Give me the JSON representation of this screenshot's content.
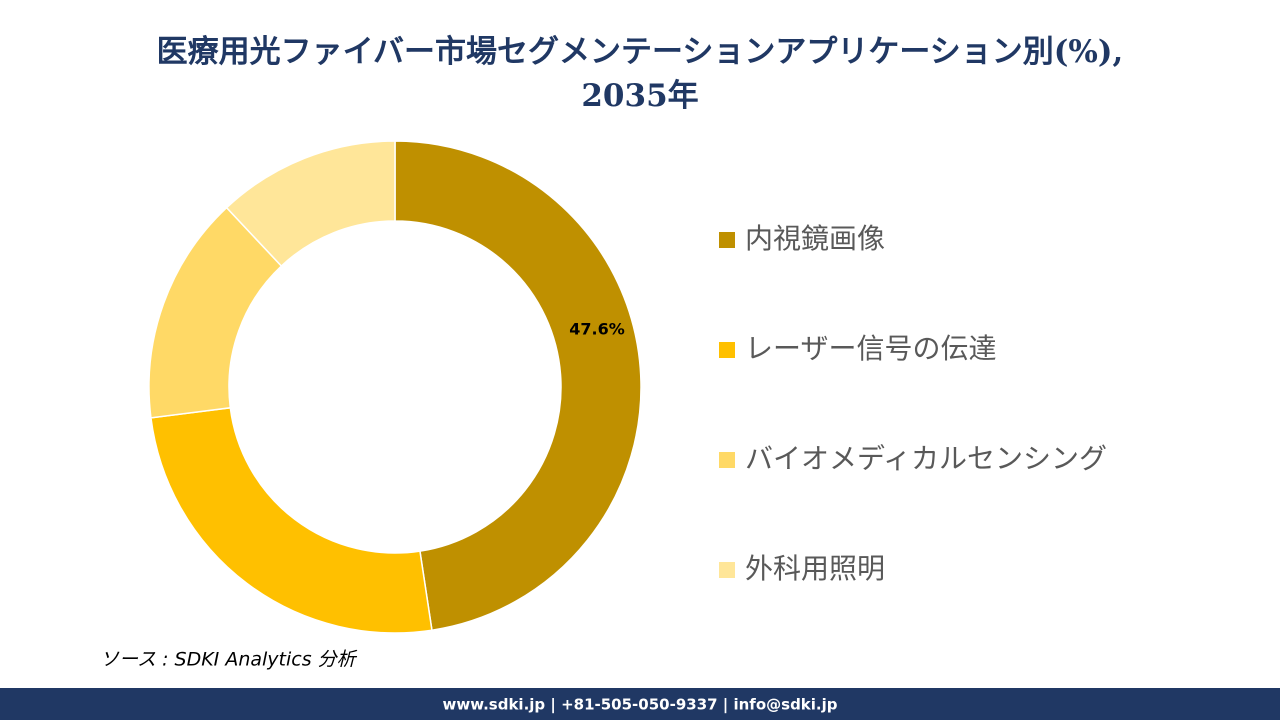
{
  "chart_data": {
    "type": "donut",
    "title_lines": [
      "医療用光ファイバー市場セグメンテーションアプリケーション別(%),",
      "2035年"
    ],
    "categories": [
      "内視鏡画像",
      "レーザー信号の伝達",
      "バイオメディカルセンシング",
      "外科用照明"
    ],
    "values": [
      47.6,
      25.4,
      15.0,
      12.0
    ],
    "value_labels": [
      "47.6%",
      null,
      null,
      null
    ],
    "colors": [
      "#bf9000",
      "#ffc000",
      "#ffd966",
      "#ffe699"
    ],
    "legend": "right"
  },
  "source": "ソース : SDKI Analytics 分析",
  "footer": "www.sdki.jp | +81-505-050-9337 | info@sdki.jp"
}
